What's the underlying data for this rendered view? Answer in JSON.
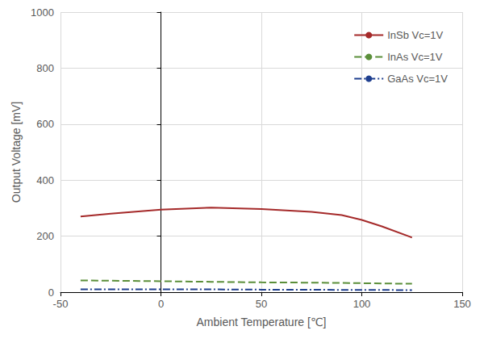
{
  "chart_data": {
    "type": "line",
    "x_label": "Ambient Temperature [℃]",
    "y_label": "Output Voltage [mV]",
    "x": [
      -40,
      -25,
      0,
      25,
      50,
      75,
      90,
      100,
      110,
      125
    ],
    "series": [
      {
        "name": "InSb Vc=1V",
        "color": "#a52a2a",
        "line_style": "solid",
        "values": [
          270,
          280,
          295,
          302,
          297,
          287,
          275,
          258,
          235,
          195
        ]
      },
      {
        "name": "InAs Vc=1V",
        "color": "#5b8f3a",
        "line_style": "dashed",
        "values": [
          42,
          41,
          39,
          37,
          35,
          34,
          33,
          32,
          31,
          30
        ]
      },
      {
        "name": "GaAs Vc=1V",
        "color": "#1f3f8f",
        "line_style": "dashdot",
        "values": [
          10,
          10,
          10,
          10,
          9,
          9,
          8,
          8,
          8,
          7
        ]
      }
    ],
    "xlim": [
      -50,
      150
    ],
    "xticks": [
      -50,
      0,
      50,
      100,
      150
    ],
    "ylim": [
      0,
      1000
    ],
    "yticks": [
      0,
      200,
      400,
      600,
      800,
      1000
    ],
    "grid": true,
    "legend": "upper right"
  }
}
